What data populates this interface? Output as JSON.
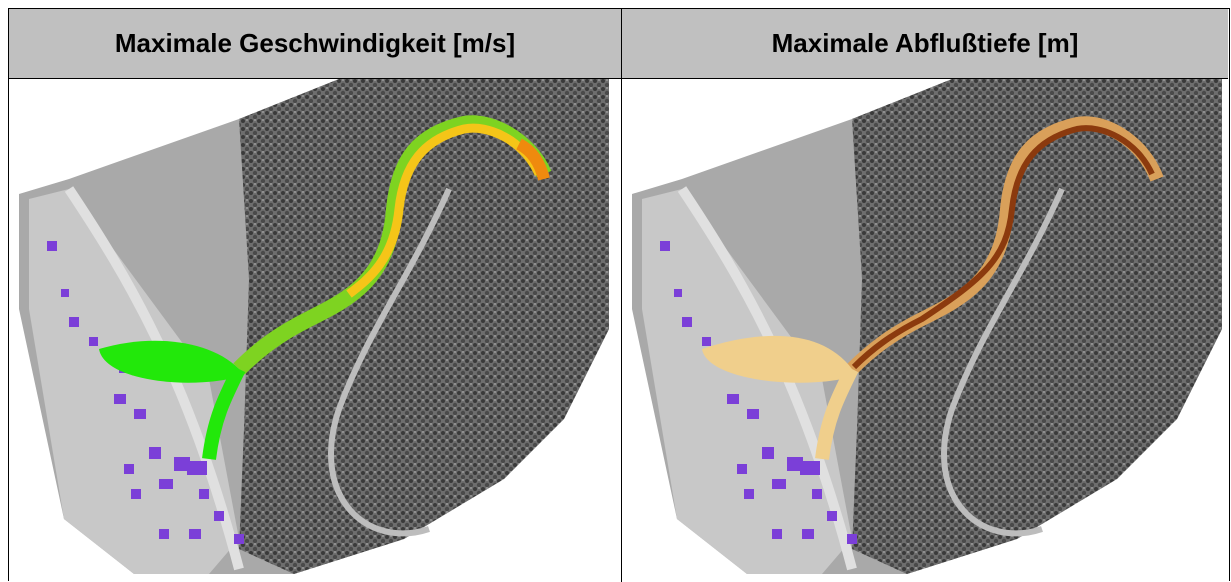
{
  "table": {
    "headers": [
      "Maximale Geschwindigkeit [m/s]",
      "Maximale Abflußtiefe [m]"
    ]
  }
}
